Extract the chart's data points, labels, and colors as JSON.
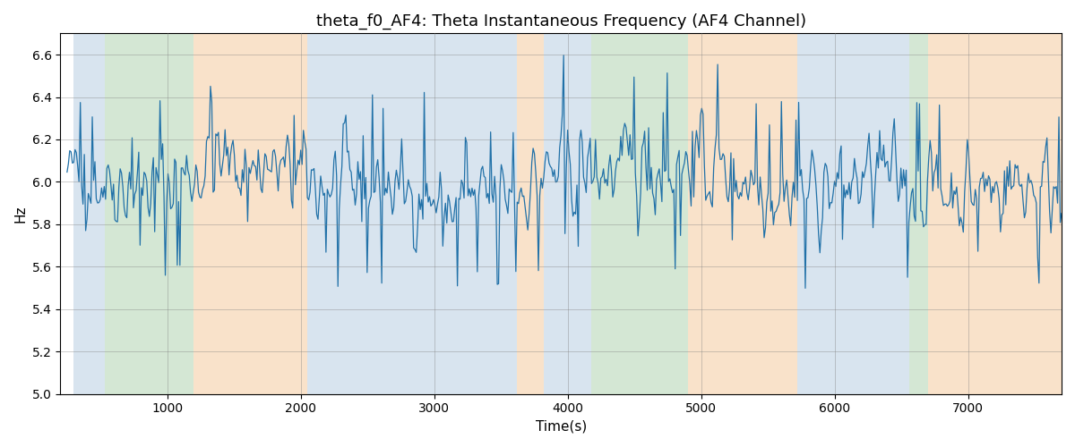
{
  "title": "theta_f0_AF4: Theta Instantaneous Frequency (AF4 Channel)",
  "xlabel": "Time(s)",
  "ylabel": "Hz",
  "ylim": [
    5.0,
    6.7
  ],
  "xlim": [
    200,
    7700
  ],
  "line_color": "#2171a8",
  "line_width": 0.9,
  "bg_regions": [
    {
      "xmin": 300,
      "xmax": 530,
      "color": "#aac4dd",
      "alpha": 0.45
    },
    {
      "xmin": 530,
      "xmax": 1200,
      "color": "#90c090",
      "alpha": 0.38
    },
    {
      "xmin": 1200,
      "xmax": 2050,
      "color": "#f5c89a",
      "alpha": 0.52
    },
    {
      "xmin": 2050,
      "xmax": 2150,
      "color": "#aac4dd",
      "alpha": 0.45
    },
    {
      "xmin": 2150,
      "xmax": 3620,
      "color": "#aac4dd",
      "alpha": 0.45
    },
    {
      "xmin": 3620,
      "xmax": 3820,
      "color": "#f5c89a",
      "alpha": 0.52
    },
    {
      "xmin": 3820,
      "xmax": 4180,
      "color": "#aac4dd",
      "alpha": 0.45
    },
    {
      "xmin": 4180,
      "xmax": 4900,
      "color": "#90c090",
      "alpha": 0.38
    },
    {
      "xmin": 4900,
      "xmax": 5720,
      "color": "#f5c89a",
      "alpha": 0.52
    },
    {
      "xmin": 5720,
      "xmax": 6560,
      "color": "#aac4dd",
      "alpha": 0.45
    },
    {
      "xmin": 6560,
      "xmax": 6700,
      "color": "#90c090",
      "alpha": 0.38
    },
    {
      "xmin": 6700,
      "xmax": 7750,
      "color": "#f5c89a",
      "alpha": 0.52
    }
  ],
  "seed": 42,
  "n_points": 750,
  "base_freq": 6.0,
  "noise_std": 0.18,
  "spike_prob": 0.08,
  "spike_amp": 0.28
}
